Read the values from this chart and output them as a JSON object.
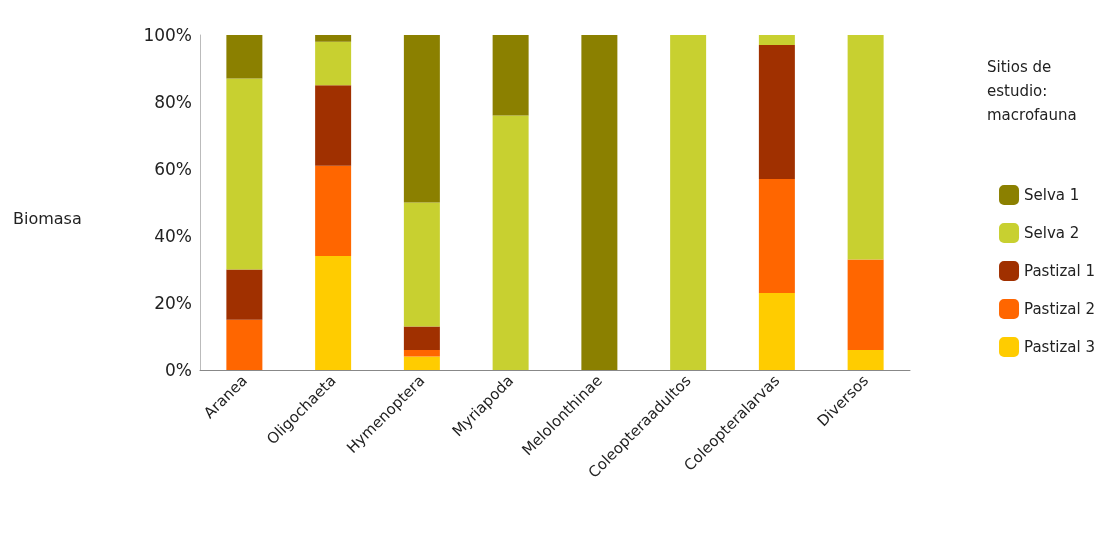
{
  "chart_data": {
    "type": "bar",
    "stacked": true,
    "ylabel": "Biomasa",
    "legend_title": "Sitios de estudio: macrofauna",
    "legend": "right",
    "grid": false,
    "categories": [
      "Aranea",
      "Oligochaeta",
      "Hymenoptera",
      "Myriapoda",
      "Melolonthinae",
      "Coleopteraadultos",
      "Coleopteralarvas",
      "Diversos"
    ],
    "ylim": [
      0,
      100
    ],
    "yticks": [
      {
        "value": 0,
        "label": "0%"
      },
      {
        "value": 20,
        "label": "20%"
      },
      {
        "value": 40,
        "label": "40%"
      },
      {
        "value": 60,
        "label": "60%"
      },
      {
        "value": 80,
        "label": "80%"
      },
      {
        "value": 100,
        "label": "100%"
      }
    ],
    "series": [
      {
        "name": "Pastizal 3",
        "color": "#ffcc00",
        "values": [
          0,
          34,
          4,
          0,
          0,
          0,
          23,
          6
        ]
      },
      {
        "name": "Pastizal 2",
        "color": "#ff6600",
        "values": [
          15,
          27,
          2,
          0,
          0,
          0,
          34,
          27
        ]
      },
      {
        "name": "Pastizal 1",
        "color": "#a03000",
        "values": [
          15,
          24,
          7,
          0,
          0,
          0,
          40,
          0
        ]
      },
      {
        "name": "Selva 2",
        "color": "#c8d030",
        "values": [
          57,
          13,
          37,
          76,
          0,
          100,
          3,
          67
        ]
      },
      {
        "name": "Selva 1",
        "color": "#8b8000",
        "values": [
          13,
          2,
          50,
          24,
          100,
          0,
          0,
          0
        ]
      }
    ]
  }
}
